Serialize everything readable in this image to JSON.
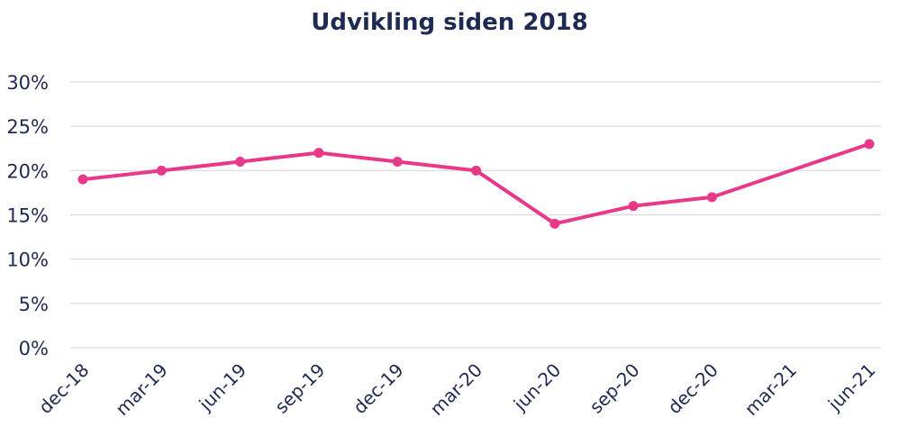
{
  "chart_data": {
    "type": "line",
    "title": "Udvikling siden 2018",
    "xlabel": "",
    "ylabel": "",
    "categories": [
      "dec-18",
      "mar-19",
      "jun-19",
      "sep-19",
      "dec-19",
      "mar-20",
      "jun-20",
      "sep-20",
      "dec-20",
      "mar-21",
      "jun-21"
    ],
    "series": [
      {
        "values": [
          19,
          20,
          21,
          22,
          21,
          20,
          14,
          16,
          17,
          null,
          23
        ]
      }
    ],
    "ylim": [
      0,
      30
    ],
    "yticks": [
      0,
      5,
      10,
      15,
      20,
      25,
      30
    ],
    "ytick_labels": [
      "0%",
      "5%",
      "10%",
      "15%",
      "20%",
      "25%",
      "30%"
    ],
    "grid": true,
    "legend": "none",
    "colors": {
      "series": "#e8388a",
      "grid": "#d9d9d9",
      "text": "#1f2a52"
    }
  }
}
